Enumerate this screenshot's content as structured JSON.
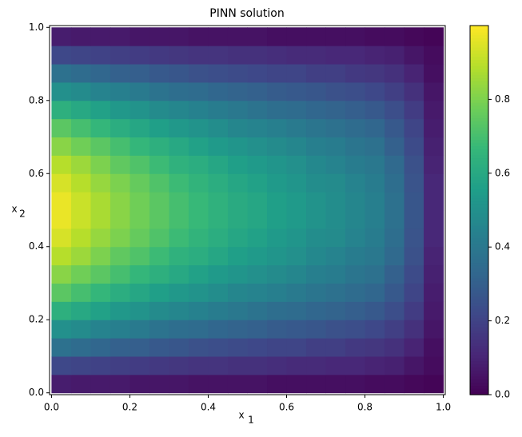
{
  "chart_data": {
    "type": "heatmap",
    "title": "PINN solution",
    "xlabel": [
      "x",
      "1"
    ],
    "ylabel": [
      "x",
      "2"
    ],
    "x": [
      0.025,
      0.075,
      0.125,
      0.175,
      0.225,
      0.275,
      0.325,
      0.375,
      0.425,
      0.475,
      0.525,
      0.575,
      0.625,
      0.675,
      0.725,
      0.775,
      0.825,
      0.875,
      0.925,
      0.975
    ],
    "y": [
      0.025,
      0.075,
      0.125,
      0.175,
      0.225,
      0.275,
      0.325,
      0.375,
      0.425,
      0.475,
      0.525,
      0.575,
      0.625,
      0.675,
      0.725,
      0.775,
      0.825,
      0.875,
      0.925,
      0.975
    ],
    "z": [
      [
        0.08,
        0.07,
        0.07,
        0.07,
        0.06,
        0.06,
        0.06,
        0.05,
        0.05,
        0.05,
        0.05,
        0.04,
        0.04,
        0.04,
        0.04,
        0.04,
        0.03,
        0.03,
        0.02,
        0.01
      ],
      [
        0.22,
        0.21,
        0.2,
        0.19,
        0.18,
        0.17,
        0.16,
        0.15,
        0.15,
        0.14,
        0.14,
        0.13,
        0.12,
        0.12,
        0.11,
        0.11,
        0.1,
        0.09,
        0.06,
        0.03
      ],
      [
        0.37,
        0.35,
        0.33,
        0.31,
        0.3,
        0.28,
        0.27,
        0.25,
        0.24,
        0.23,
        0.22,
        0.21,
        0.21,
        0.19,
        0.19,
        0.17,
        0.16,
        0.14,
        0.1,
        0.04
      ],
      [
        0.5,
        0.48,
        0.45,
        0.43,
        0.41,
        0.38,
        0.36,
        0.35,
        0.33,
        0.32,
        0.31,
        0.29,
        0.28,
        0.27,
        0.25,
        0.24,
        0.22,
        0.19,
        0.14,
        0.06
      ],
      [
        0.63,
        0.6,
        0.57,
        0.53,
        0.51,
        0.48,
        0.46,
        0.44,
        0.42,
        0.4,
        0.38,
        0.36,
        0.35,
        0.33,
        0.32,
        0.3,
        0.28,
        0.24,
        0.18,
        0.07
      ],
      [
        0.74,
        0.7,
        0.66,
        0.62,
        0.59,
        0.56,
        0.53,
        0.51,
        0.49,
        0.46,
        0.45,
        0.43,
        0.41,
        0.39,
        0.37,
        0.35,
        0.33,
        0.28,
        0.21,
        0.08
      ],
      [
        0.82,
        0.78,
        0.74,
        0.7,
        0.66,
        0.63,
        0.6,
        0.57,
        0.54,
        0.52,
        0.5,
        0.48,
        0.46,
        0.43,
        0.42,
        0.39,
        0.37,
        0.31,
        0.23,
        0.09
      ],
      [
        0.89,
        0.85,
        0.8,
        0.75,
        0.72,
        0.68,
        0.64,
        0.62,
        0.59,
        0.56,
        0.54,
        0.52,
        0.5,
        0.47,
        0.45,
        0.42,
        0.4,
        0.34,
        0.25,
        0.1
      ],
      [
        0.94,
        0.89,
        0.84,
        0.8,
        0.76,
        0.72,
        0.68,
        0.65,
        0.62,
        0.59,
        0.57,
        0.54,
        0.52,
        0.49,
        0.48,
        0.45,
        0.42,
        0.36,
        0.26,
        0.11
      ],
      [
        0.97,
        0.92,
        0.87,
        0.82,
        0.78,
        0.74,
        0.7,
        0.67,
        0.64,
        0.61,
        0.59,
        0.56,
        0.54,
        0.51,
        0.49,
        0.46,
        0.43,
        0.37,
        0.27,
        0.11
      ],
      [
        0.97,
        0.92,
        0.87,
        0.82,
        0.78,
        0.74,
        0.7,
        0.67,
        0.64,
        0.61,
        0.59,
        0.56,
        0.54,
        0.51,
        0.49,
        0.46,
        0.43,
        0.37,
        0.27,
        0.11
      ],
      [
        0.94,
        0.89,
        0.84,
        0.8,
        0.76,
        0.72,
        0.68,
        0.65,
        0.62,
        0.59,
        0.57,
        0.54,
        0.52,
        0.49,
        0.48,
        0.45,
        0.42,
        0.36,
        0.26,
        0.11
      ],
      [
        0.89,
        0.85,
        0.8,
        0.75,
        0.72,
        0.68,
        0.64,
        0.62,
        0.59,
        0.56,
        0.54,
        0.52,
        0.5,
        0.47,
        0.45,
        0.42,
        0.4,
        0.34,
        0.25,
        0.1
      ],
      [
        0.82,
        0.78,
        0.74,
        0.7,
        0.66,
        0.63,
        0.6,
        0.57,
        0.54,
        0.52,
        0.5,
        0.48,
        0.46,
        0.43,
        0.42,
        0.39,
        0.37,
        0.31,
        0.23,
        0.09
      ],
      [
        0.74,
        0.7,
        0.66,
        0.62,
        0.59,
        0.56,
        0.53,
        0.51,
        0.49,
        0.46,
        0.45,
        0.43,
        0.41,
        0.39,
        0.37,
        0.35,
        0.33,
        0.28,
        0.21,
        0.08
      ],
      [
        0.63,
        0.6,
        0.57,
        0.53,
        0.51,
        0.48,
        0.46,
        0.44,
        0.42,
        0.4,
        0.38,
        0.36,
        0.35,
        0.33,
        0.32,
        0.3,
        0.28,
        0.24,
        0.18,
        0.07
      ],
      [
        0.5,
        0.48,
        0.45,
        0.43,
        0.41,
        0.38,
        0.36,
        0.35,
        0.33,
        0.32,
        0.31,
        0.29,
        0.28,
        0.27,
        0.25,
        0.24,
        0.22,
        0.19,
        0.14,
        0.06
      ],
      [
        0.37,
        0.35,
        0.33,
        0.31,
        0.3,
        0.28,
        0.27,
        0.25,
        0.24,
        0.23,
        0.22,
        0.21,
        0.21,
        0.19,
        0.19,
        0.17,
        0.16,
        0.14,
        0.1,
        0.04
      ],
      [
        0.22,
        0.21,
        0.2,
        0.19,
        0.18,
        0.17,
        0.16,
        0.15,
        0.15,
        0.14,
        0.14,
        0.13,
        0.12,
        0.12,
        0.11,
        0.11,
        0.1,
        0.09,
        0.06,
        0.03
      ],
      [
        0.08,
        0.07,
        0.07,
        0.07,
        0.06,
        0.06,
        0.06,
        0.05,
        0.05,
        0.05,
        0.05,
        0.04,
        0.04,
        0.04,
        0.04,
        0.04,
        0.03,
        0.03,
        0.02,
        0.01
      ]
    ],
    "xlim": [
      -0.005,
      1.005
    ],
    "ylim": [
      -0.005,
      1.005
    ],
    "xticks": [
      {
        "value": 0,
        "label": "0.0"
      },
      {
        "value": 0.2,
        "label": "0.2"
      },
      {
        "value": 0.4,
        "label": "0.4"
      },
      {
        "value": 0.6,
        "label": "0.6"
      },
      {
        "value": 0.8,
        "label": "0.8"
      },
      {
        "value": 1,
        "label": "1.0"
      }
    ],
    "yticks": [
      {
        "value": 0,
        "label": "0.0"
      },
      {
        "value": 0.2,
        "label": "0.2"
      },
      {
        "value": 0.4,
        "label": "0.4"
      },
      {
        "value": 0.6,
        "label": "0.6"
      },
      {
        "value": 0.8,
        "label": "0.8"
      },
      {
        "value": 1,
        "label": "1.0"
      }
    ],
    "zlim": [
      0,
      1.0
    ],
    "zticks": [
      {
        "value": 0,
        "label": "0.0"
      },
      {
        "value": 0.2,
        "label": "0.2"
      },
      {
        "value": 0.4,
        "label": "0.4"
      },
      {
        "value": 0.6,
        "label": "0.6"
      },
      {
        "value": 0.8,
        "label": "0.8"
      }
    ],
    "colorscale": [
      "#440154",
      "#482878",
      "#3e4989",
      "#31688e",
      "#26828e",
      "#1f9e89",
      "#35b779",
      "#6ece58",
      "#b5de2b",
      "#fde725"
    ]
  }
}
